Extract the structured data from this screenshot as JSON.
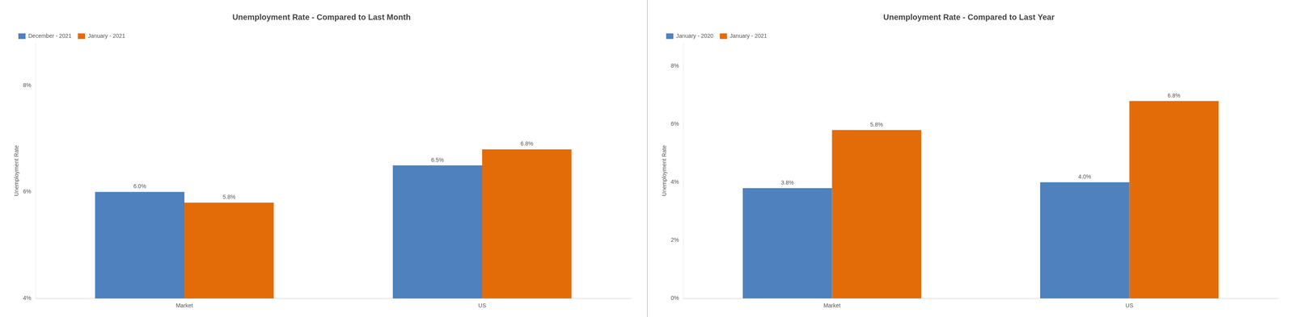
{
  "chart_data": [
    {
      "type": "bar",
      "title": "Unemployment Rate - Compared to Last Month",
      "y_label": "Unemployment Rate",
      "categories": [
        "Market",
        "US"
      ],
      "series": [
        {
          "name": "December - 2021",
          "color": "#4E81BD",
          "values": [
            6.0,
            6.5
          ],
          "value_labels": [
            "6.0%",
            "6.5%"
          ]
        },
        {
          "name": "January - 2021",
          "color": "#E36C09",
          "values": [
            5.8,
            6.8
          ],
          "value_labels": [
            "5.8%",
            "6.8%"
          ]
        }
      ],
      "ylim": [
        4,
        8.8
      ],
      "yticks": [
        {
          "value": 4,
          "label": "4%"
        },
        {
          "value": 6,
          "label": "6%"
        },
        {
          "value": 8,
          "label": "8%"
        }
      ],
      "grid": false,
      "legend": "upper left",
      "data_labels": true
    },
    {
      "type": "bar",
      "title": "Unemployment Rate - Compared to Last Year",
      "y_label": "Unemployment Rate",
      "categories": [
        "Market",
        "US"
      ],
      "series": [
        {
          "name": "January - 2020",
          "color": "#4E81BD",
          "values": [
            3.8,
            4.0
          ],
          "value_labels": [
            "3.8%",
            "4.0%"
          ]
        },
        {
          "name": "January - 2021",
          "color": "#E36C09",
          "values": [
            5.8,
            6.8
          ],
          "value_labels": [
            "5.8%",
            "6.8%"
          ]
        }
      ],
      "ylim": [
        0,
        8.8
      ],
      "yticks": [
        {
          "value": 0,
          "label": "0%"
        },
        {
          "value": 2,
          "label": "2%"
        },
        {
          "value": 4,
          "label": "4%"
        },
        {
          "value": 6,
          "label": "6%"
        },
        {
          "value": 8,
          "label": "8%"
        }
      ],
      "grid": false,
      "legend": "upper left",
      "data_labels": true
    }
  ]
}
